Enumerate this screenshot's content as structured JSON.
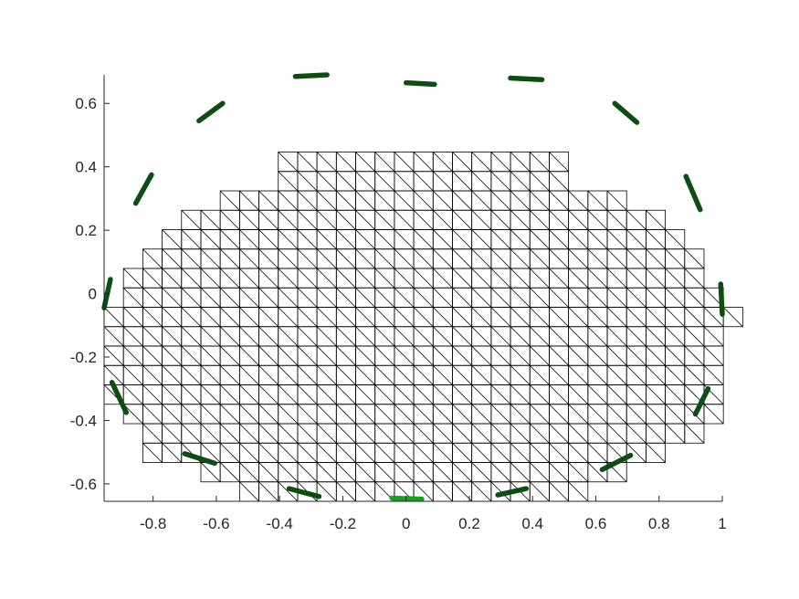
{
  "chart_data": {
    "type": "mesh",
    "title": "",
    "xlabel": "",
    "ylabel": "",
    "xlim": [
      -0.955,
      1.0
    ],
    "ylim": [
      -0.655,
      0.69
    ],
    "xticks": [
      -0.8,
      -0.6,
      -0.4,
      -0.2,
      0,
      0.2,
      0.4,
      0.6,
      0.8,
      1
    ],
    "xtick_labels": [
      "-0.8",
      "-0.6",
      "-0.4",
      "-0.2",
      "0",
      "0.2",
      "0.4",
      "0.6",
      "0.8",
      "1"
    ],
    "yticks": [
      -0.6,
      -0.4,
      -0.2,
      0,
      0.2,
      0.4,
      0.6
    ],
    "ytick_labels": [
      "-0.6",
      "-0.4",
      "-0.2",
      "0",
      "0.2",
      "0.4",
      "0.6"
    ],
    "grid": false,
    "mesh": {
      "cell_size": 0.0612,
      "x_origin": -0.955,
      "y_origin": -0.655,
      "diagonal": "top-left to bottom-right",
      "rows_bottom_to_top": [
        [
          7,
          25
        ],
        [
          5,
          27
        ],
        [
          2,
          29
        ],
        [
          2,
          31
        ],
        [
          1,
          32
        ],
        [
          0,
          32
        ],
        [
          0,
          32
        ],
        [
          0,
          32
        ],
        [
          0,
          32
        ],
        [
          0,
          33
        ],
        [
          1,
          32
        ],
        [
          1,
          31
        ],
        [
          2,
          31
        ],
        [
          3,
          30
        ],
        [
          4,
          29
        ],
        [
          6,
          27
        ],
        [
          9,
          24
        ],
        [
          9,
          24
        ]
      ]
    },
    "series": [
      {
        "type": "segments",
        "color": "#0b4d12",
        "segments": [
          [
            [
              -0.35,
              0.685
            ],
            [
              -0.25,
              0.69
            ]
          ],
          [
            [
              0.0,
              0.665
            ],
            [
              0.09,
              0.66
            ]
          ],
          [
            [
              0.33,
              0.68
            ],
            [
              0.43,
              0.675
            ]
          ],
          [
            [
              -0.655,
              0.545
            ],
            [
              -0.58,
              0.6
            ]
          ],
          [
            [
              0.66,
              0.6
            ],
            [
              0.73,
              0.54
            ]
          ],
          [
            [
              -0.855,
              0.285
            ],
            [
              -0.805,
              0.375
            ]
          ],
          [
            [
              0.885,
              0.37
            ],
            [
              0.93,
              0.265
            ]
          ],
          [
            [
              -0.955,
              -0.045
            ],
            [
              -0.935,
              0.045
            ]
          ],
          [
            [
              0.995,
              0.03
            ],
            [
              1.0,
              -0.065
            ]
          ],
          [
            [
              -0.93,
              -0.28
            ],
            [
              -0.885,
              -0.375
            ]
          ],
          [
            [
              0.915,
              -0.38
            ],
            [
              0.955,
              -0.3
            ]
          ],
          [
            [
              -0.7,
              -0.505
            ],
            [
              -0.605,
              -0.535
            ]
          ],
          [
            [
              0.62,
              -0.555
            ],
            [
              0.71,
              -0.51
            ]
          ],
          [
            [
              -0.37,
              -0.615
            ],
            [
              -0.275,
              -0.64
            ]
          ],
          [
            [
              0.29,
              -0.635
            ],
            [
              0.38,
              -0.615
            ]
          ]
        ]
      },
      {
        "type": "segments",
        "color": "#12a51d",
        "segments": [
          [
            [
              -0.045,
              -0.645
            ],
            [
              0.05,
              -0.648
            ]
          ]
        ]
      }
    ]
  }
}
